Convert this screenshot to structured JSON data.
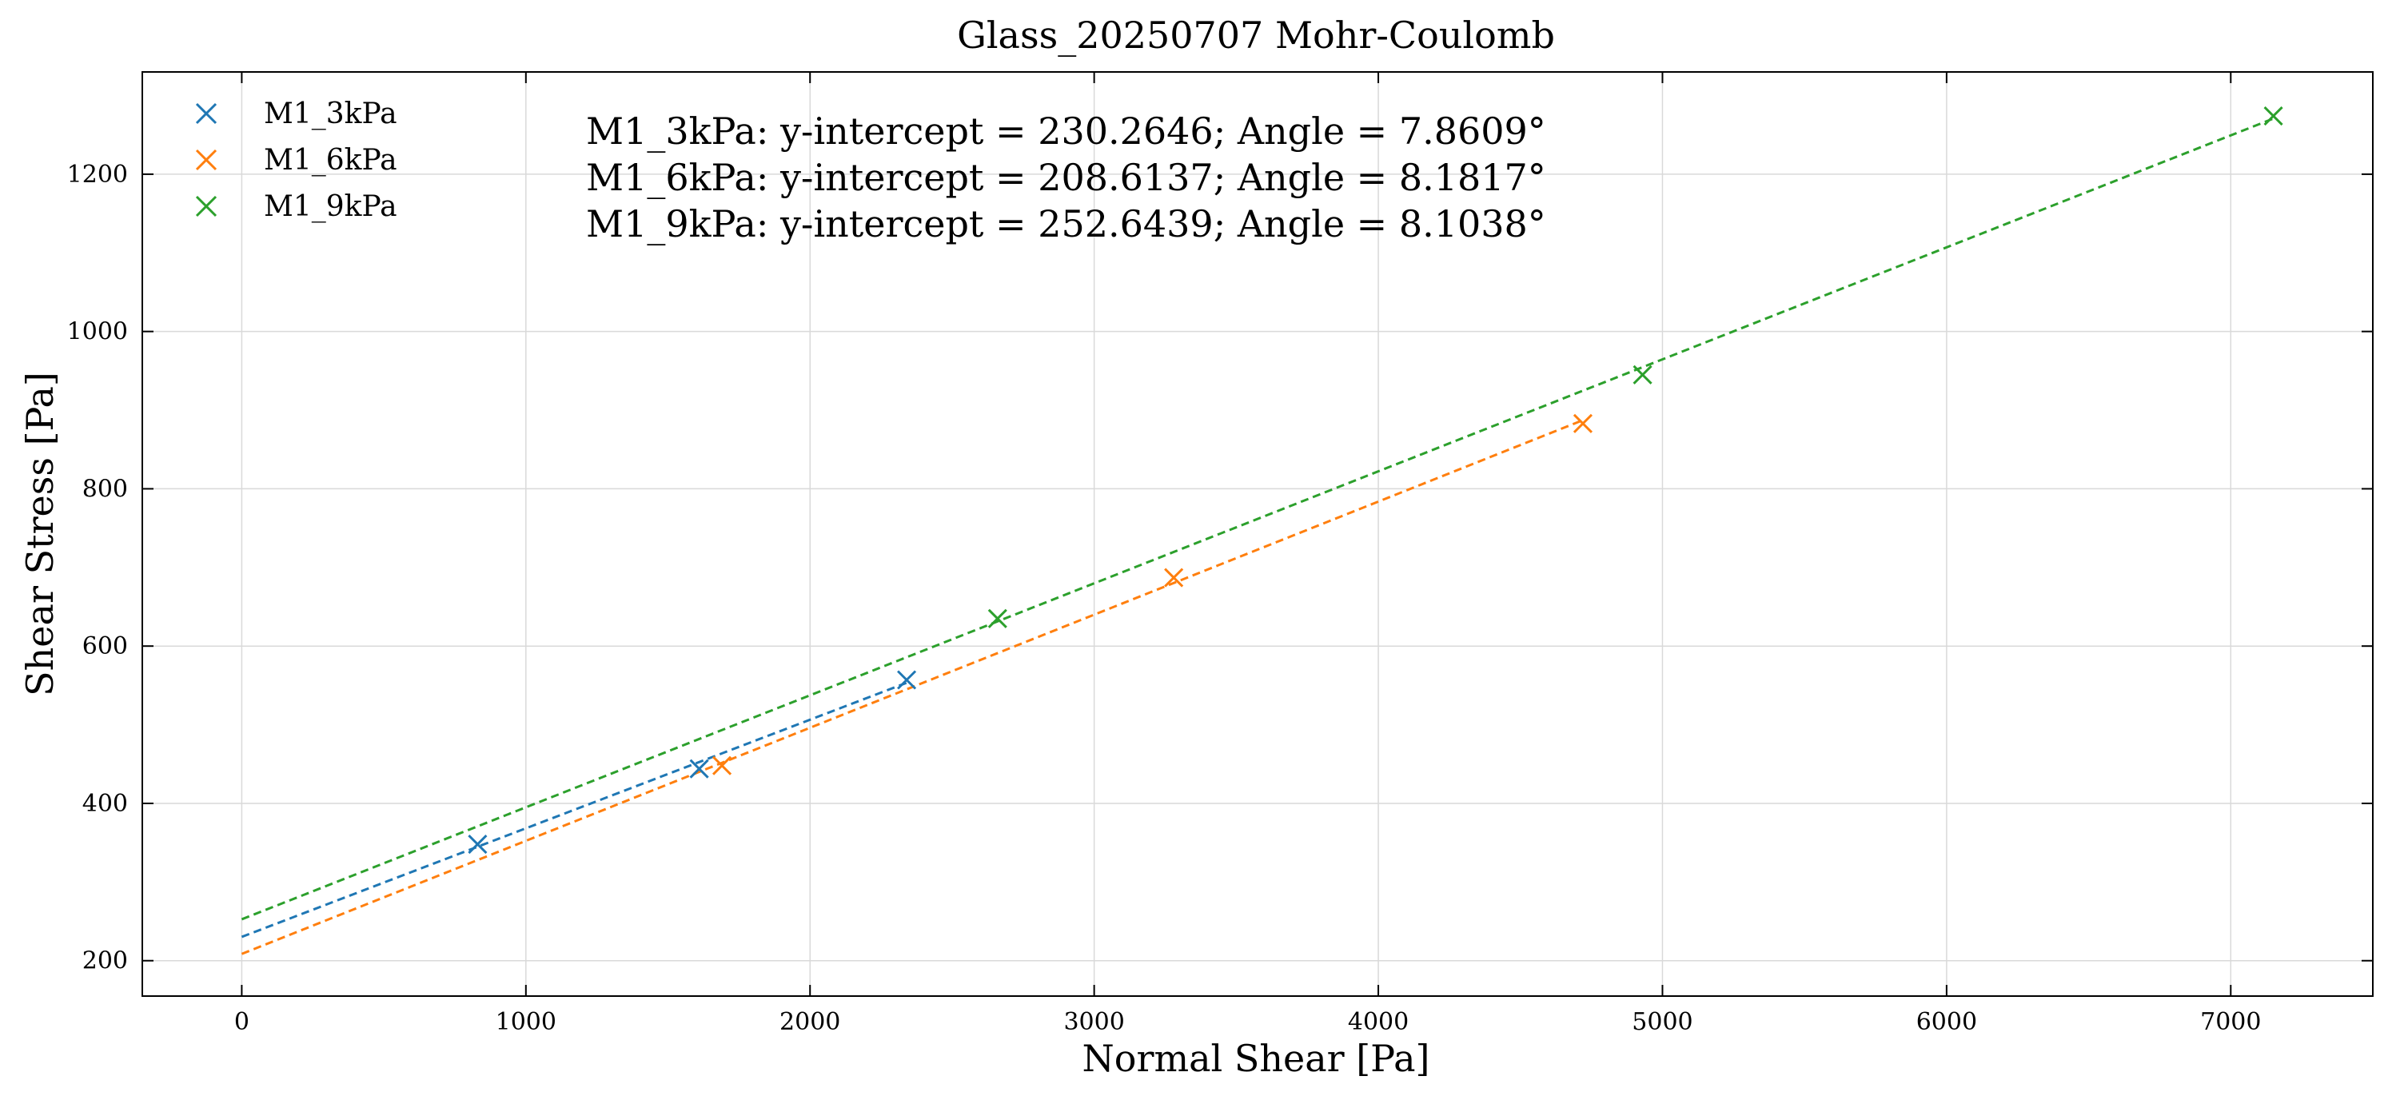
{
  "chart_data": {
    "type": "scatter",
    "title": "Glass_20250707 Mohr-Coulomb",
    "xlabel": "Normal Shear [Pa]",
    "ylabel": "Shear Stress [Pa]",
    "xlim": [
      -350,
      7500
    ],
    "ylim": [
      155,
      1330
    ],
    "xticks": [
      0,
      1000,
      2000,
      3000,
      4000,
      5000,
      6000,
      7000
    ],
    "yticks": [
      200,
      400,
      600,
      800,
      1000,
      1200
    ],
    "grid": true,
    "legend_position": "top-left",
    "series": [
      {
        "name": "M1_3kPa",
        "color": "#1f77b4",
        "marker": "x",
        "points": [
          [
            830,
            348
          ],
          [
            1610,
            444
          ],
          [
            2340,
            557
          ]
        ],
        "fit": {
          "intercept": 230.2646,
          "angle_deg": 7.8609,
          "x_range": [
            0,
            2340
          ]
        }
      },
      {
        "name": "M1_6kPa",
        "color": "#ff7f0e",
        "marker": "x",
        "points": [
          [
            1690,
            448
          ],
          [
            3280,
            687
          ],
          [
            4720,
            883
          ]
        ],
        "fit": {
          "intercept": 208.6137,
          "angle_deg": 8.1817,
          "x_range": [
            0,
            4720
          ]
        }
      },
      {
        "name": "M1_9kPa",
        "color": "#2ca02c",
        "marker": "x",
        "points": [
          [
            2660,
            635
          ],
          [
            4930,
            945
          ],
          [
            7150,
            1274
          ]
        ],
        "fit": {
          "intercept": 252.6439,
          "angle_deg": 8.1038,
          "x_range": [
            0,
            7150
          ]
        }
      }
    ],
    "annotations": [
      "M1_3kPa: y-intercept = 230.2646; Angle = 7.8609°",
      "M1_6kPa: y-intercept = 208.6137; Angle = 8.1817°",
      "M1_9kPa: y-intercept = 252.6439; Angle = 8.1038°"
    ]
  }
}
